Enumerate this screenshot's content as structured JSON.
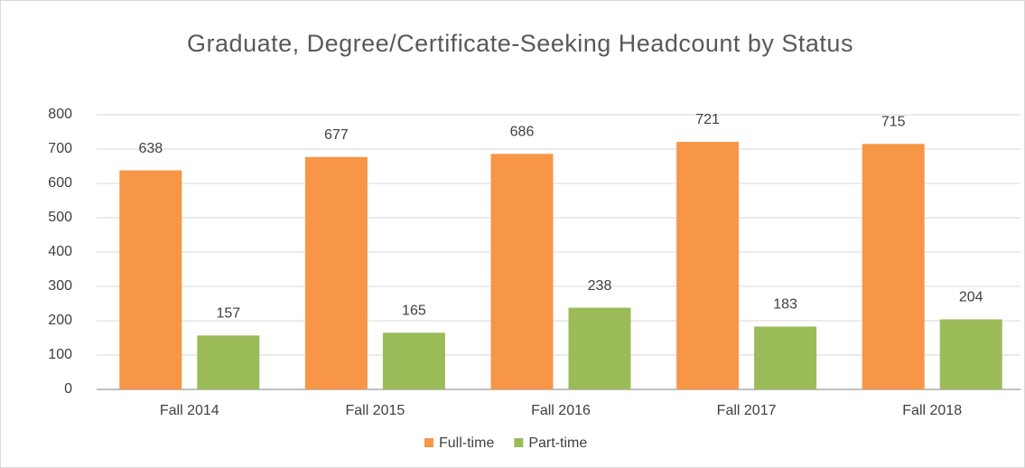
{
  "chart_data": {
    "type": "bar",
    "title": "Graduate, Degree/Certificate-Seeking Headcount by Status",
    "categories": [
      "Fall 2014",
      "Fall 2015",
      "Fall 2016",
      "Fall 2017",
      "Fall 2018"
    ],
    "series": [
      {
        "name": "Full-time",
        "color": "#f79646",
        "values": [
          638,
          677,
          686,
          721,
          715
        ]
      },
      {
        "name": "Part-time",
        "color": "#9bbb59",
        "values": [
          157,
          165,
          238,
          183,
          204
        ]
      }
    ],
    "ylim": [
      0,
      800
    ],
    "yticks": [
      0,
      100,
      200,
      300,
      400,
      500,
      600,
      700,
      800
    ],
    "grid": true,
    "legend": "bottom"
  }
}
